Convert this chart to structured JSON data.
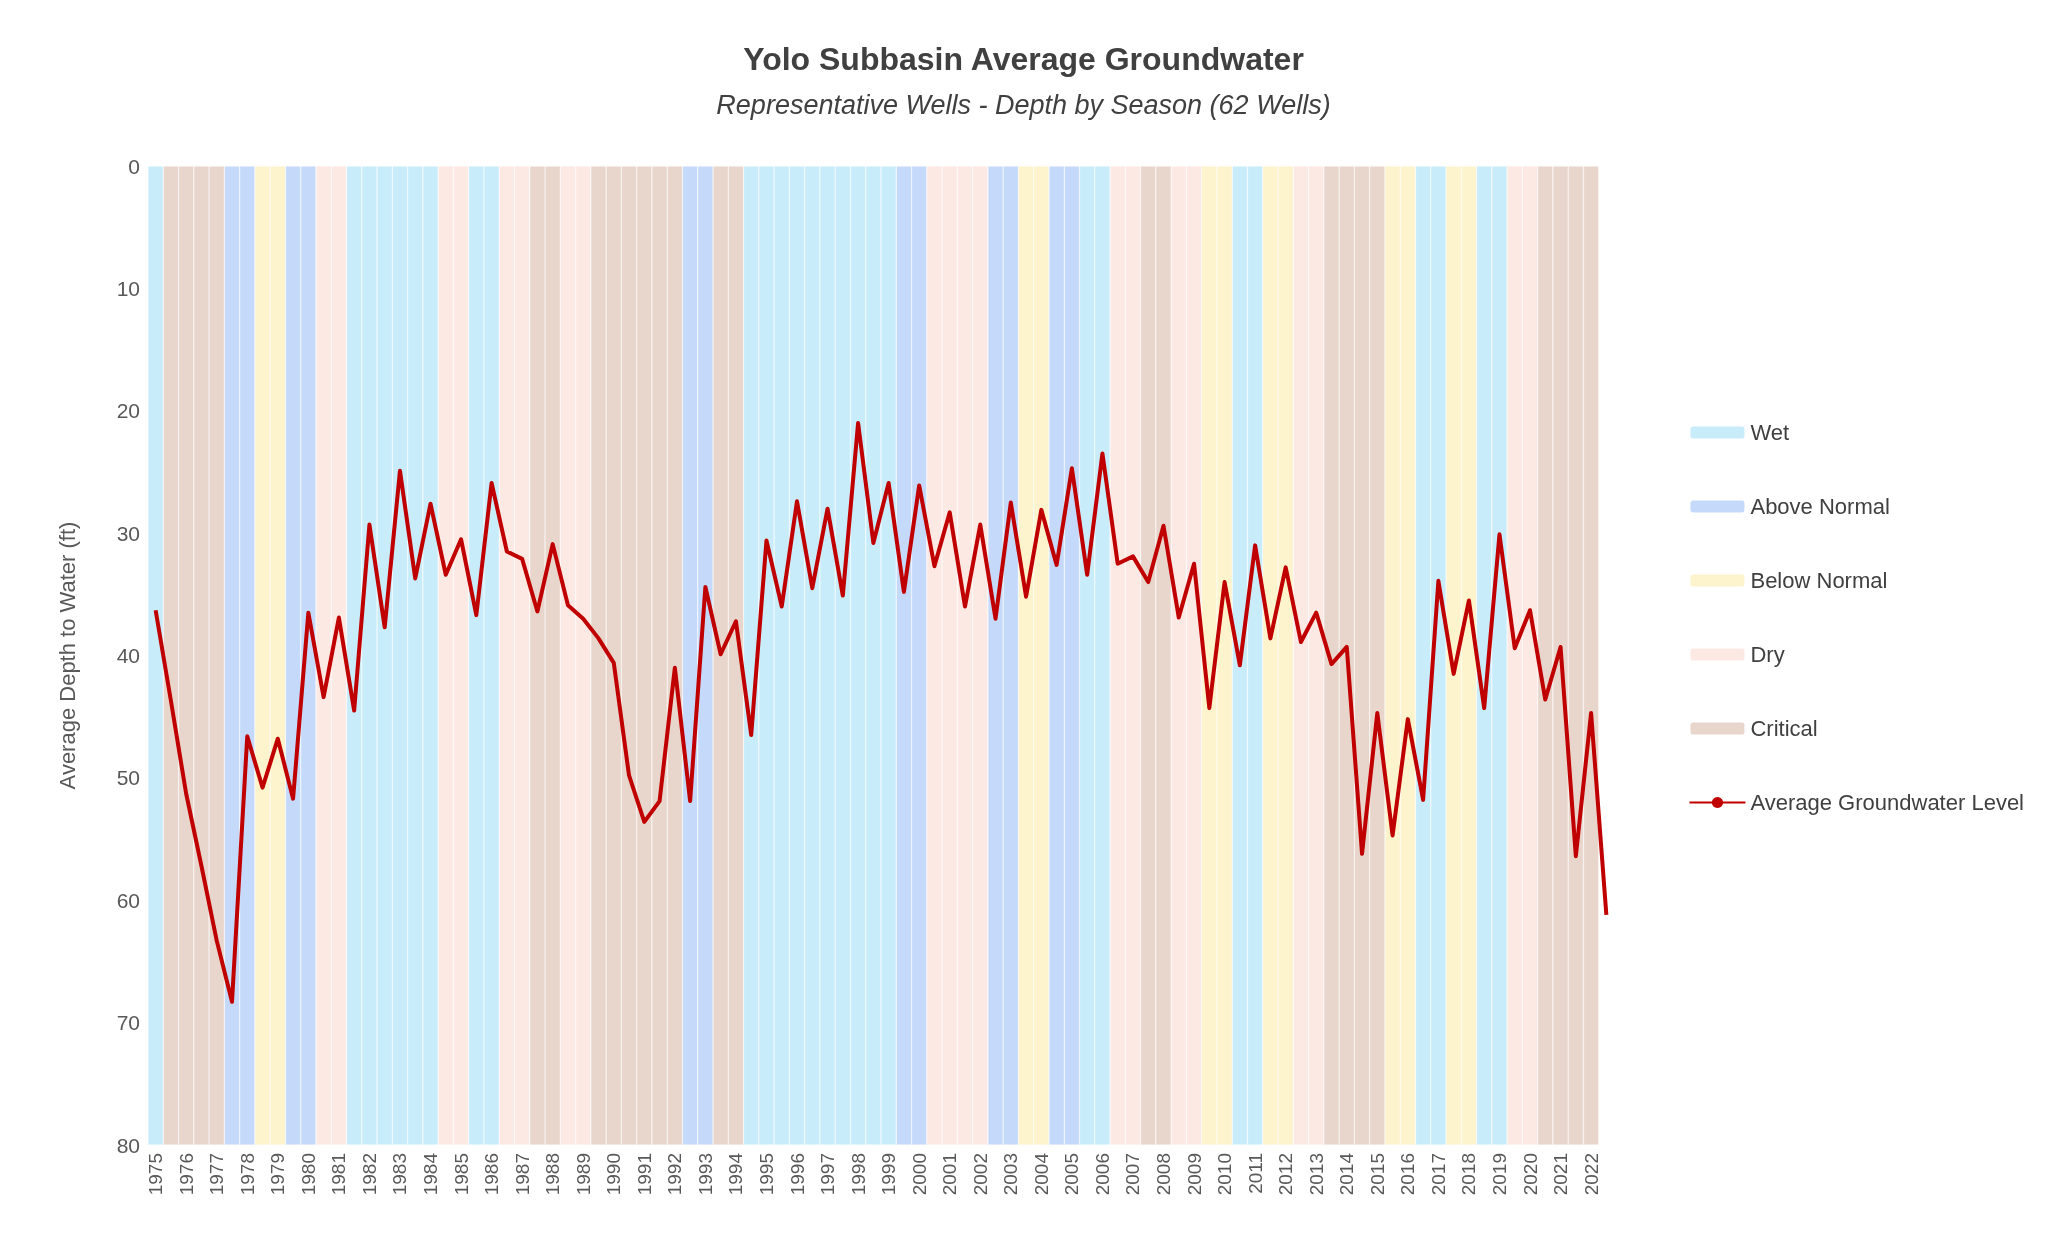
{
  "chart_data": {
    "type": "line",
    "title": "Yolo Subbasin Average Groundwater",
    "subtitle": "Representative Wells - Depth by Season (62 Wells)",
    "ylabel": "Average Depth to Water (ft)",
    "categories": [
      "1975",
      null,
      "1976",
      null,
      "1977",
      null,
      "1978",
      null,
      "1979",
      null,
      "1980",
      null,
      "1981",
      null,
      "1982",
      null,
      "1983",
      null,
      "1984",
      null,
      "1985",
      null,
      "1986",
      null,
      "1987",
      null,
      "1988",
      null,
      "1989",
      null,
      "1990",
      null,
      "1991",
      null,
      "1992",
      null,
      "1993",
      null,
      "1994",
      null,
      "1995",
      null,
      "1996",
      null,
      "1997",
      null,
      "1998",
      null,
      "1999",
      null,
      "2000",
      null,
      "2001",
      null,
      "2002",
      null,
      "2003",
      null,
      "2004",
      null,
      "2005",
      null,
      "2006",
      null,
      "2007",
      null,
      "2008",
      null,
      "2009",
      null,
      "2010",
      null,
      "2011",
      null,
      "2012",
      null,
      "2013",
      null,
      "2014",
      null,
      "2015",
      null,
      "2016",
      null,
      "2017",
      null,
      "2018",
      null,
      "2019",
      null,
      "2020",
      null,
      "2021",
      null,
      "2022",
      null
    ],
    "ylim": [
      80,
      0
    ],
    "yticks": [
      0,
      10,
      20,
      30,
      40,
      50,
      60,
      70,
      80
    ],
    "grid": false,
    "legend": "right",
    "marker": "none",
    "series": [
      {
        "name": "Wet",
        "type": "bar",
        "color": "#c9ecfb",
        "values": [
          80,
          null,
          null,
          null,
          null,
          null,
          null,
          null,
          null,
          null,
          null,
          null,
          null,
          80,
          80,
          80,
          80,
          80,
          80,
          null,
          null,
          80,
          80,
          null,
          null,
          null,
          null,
          null,
          null,
          null,
          null,
          null,
          null,
          null,
          null,
          null,
          null,
          null,
          null,
          80,
          80,
          80,
          80,
          80,
          80,
          80,
          80,
          80,
          80,
          null,
          null,
          null,
          null,
          null,
          null,
          null,
          null,
          null,
          null,
          null,
          null,
          80,
          80,
          null,
          null,
          null,
          null,
          null,
          null,
          null,
          null,
          80,
          80,
          null,
          null,
          null,
          null,
          null,
          null,
          null,
          null,
          null,
          null,
          80,
          80,
          null,
          null,
          80,
          80,
          null,
          null,
          null,
          null,
          null,
          null,
          null
        ]
      },
      {
        "name": "Above Normal",
        "type": "bar",
        "color": "#c5dafa",
        "values": [
          null,
          null,
          null,
          null,
          null,
          80,
          80,
          null,
          null,
          80,
          80,
          null,
          null,
          null,
          null,
          null,
          null,
          null,
          null,
          null,
          null,
          null,
          null,
          null,
          null,
          null,
          null,
          null,
          null,
          null,
          null,
          null,
          null,
          null,
          null,
          80,
          80,
          null,
          null,
          null,
          null,
          null,
          null,
          null,
          null,
          null,
          null,
          null,
          null,
          80,
          80,
          null,
          null,
          null,
          null,
          80,
          80,
          null,
          null,
          80,
          80,
          null,
          null,
          null,
          null,
          null,
          null,
          null,
          null,
          null,
          null,
          null,
          null,
          null,
          null,
          null,
          null,
          null,
          null,
          null,
          null,
          null,
          null,
          null,
          null,
          null,
          null,
          null,
          null,
          null,
          null,
          null,
          null,
          null,
          null,
          null
        ]
      },
      {
        "name": "Below Normal",
        "type": "bar",
        "color": "#fdf3cc",
        "values": [
          null,
          null,
          null,
          null,
          null,
          null,
          null,
          80,
          80,
          null,
          null,
          null,
          null,
          null,
          null,
          null,
          null,
          null,
          null,
          null,
          null,
          null,
          null,
          null,
          null,
          null,
          null,
          null,
          null,
          null,
          null,
          null,
          null,
          null,
          null,
          null,
          null,
          null,
          null,
          null,
          null,
          null,
          null,
          null,
          null,
          null,
          null,
          null,
          null,
          null,
          null,
          null,
          null,
          null,
          null,
          null,
          null,
          80,
          80,
          null,
          null,
          null,
          null,
          null,
          null,
          null,
          null,
          null,
          null,
          80,
          80,
          null,
          null,
          80,
          80,
          null,
          null,
          null,
          null,
          null,
          null,
          80,
          80,
          null,
          null,
          80,
          80,
          null,
          null,
          null,
          null,
          null,
          null,
          null,
          null,
          null
        ]
      },
      {
        "name": "Dry",
        "type": "bar",
        "color": "#fde9e4",
        "values": [
          null,
          null,
          null,
          null,
          null,
          null,
          null,
          null,
          null,
          null,
          null,
          80,
          80,
          null,
          null,
          null,
          null,
          null,
          null,
          80,
          80,
          null,
          null,
          80,
          80,
          null,
          null,
          80,
          80,
          null,
          null,
          null,
          null,
          null,
          null,
          null,
          null,
          null,
          null,
          null,
          null,
          null,
          null,
          null,
          null,
          null,
          null,
          null,
          null,
          null,
          null,
          80,
          80,
          80,
          80,
          null,
          null,
          null,
          null,
          null,
          null,
          null,
          null,
          80,
          80,
          null,
          null,
          80,
          80,
          null,
          null,
          null,
          null,
          null,
          null,
          80,
          80,
          null,
          null,
          null,
          null,
          null,
          null,
          null,
          null,
          null,
          null,
          null,
          null,
          80,
          80,
          null,
          null,
          null,
          null,
          null
        ]
      },
      {
        "name": "Critical",
        "type": "bar",
        "color": "#e8d6cc",
        "values": [
          null,
          80,
          80,
          80,
          80,
          null,
          null,
          null,
          null,
          null,
          null,
          null,
          null,
          null,
          null,
          null,
          null,
          null,
          null,
          null,
          null,
          null,
          null,
          null,
          null,
          80,
          80,
          null,
          null,
          80,
          80,
          80,
          80,
          80,
          80,
          null,
          null,
          80,
          80,
          null,
          null,
          null,
          null,
          null,
          null,
          null,
          null,
          null,
          null,
          null,
          null,
          null,
          null,
          null,
          null,
          null,
          null,
          null,
          null,
          null,
          null,
          null,
          null,
          null,
          null,
          80,
          80,
          null,
          null,
          null,
          null,
          null,
          null,
          null,
          null,
          null,
          null,
          80,
          80,
          80,
          80,
          null,
          null,
          null,
          null,
          null,
          null,
          null,
          null,
          null,
          null,
          80,
          80,
          80,
          80,
          null
        ]
      },
      {
        "name": "Average Groundwater Level",
        "color": "#c00000",
        "values": [
          36.3,
          43.7,
          51.3,
          57.2,
          63.3,
          68.3,
          46.6,
          50.8,
          46.8,
          51.7,
          36.5,
          43.4,
          36.9,
          44.5,
          29.3,
          37.7,
          24.9,
          33.7,
          27.6,
          33.4,
          30.5,
          36.7,
          25.9,
          31.5,
          32.1,
          36.4,
          30.9,
          35.9,
          37.0,
          38.6,
          40.6,
          49.8,
          53.6,
          51.9,
          41.0,
          51.9,
          34.4,
          39.9,
          37.2,
          46.5,
          30.6,
          36.0,
          27.4,
          34.5,
          28.0,
          35.1,
          21.0,
          30.8,
          25.9,
          34.8,
          26.1,
          32.7,
          28.3,
          36.0,
          29.3,
          37.0,
          27.5,
          35.2,
          28.1,
          32.6,
          24.7,
          33.4,
          23.5,
          32.5,
          31.9,
          34.0,
          29.4,
          36.9,
          32.5,
          44.3,
          34.0,
          40.8,
          31.0,
          38.6,
          32.8,
          38.9,
          36.5,
          40.7,
          39.3,
          56.2,
          44.7,
          54.7,
          45.2,
          51.8,
          33.9,
          41.5,
          35.5,
          44.3,
          30.1,
          39.4,
          36.3,
          43.6,
          39.3,
          56.4,
          44.7,
          61.2
        ]
      }
    ]
  }
}
